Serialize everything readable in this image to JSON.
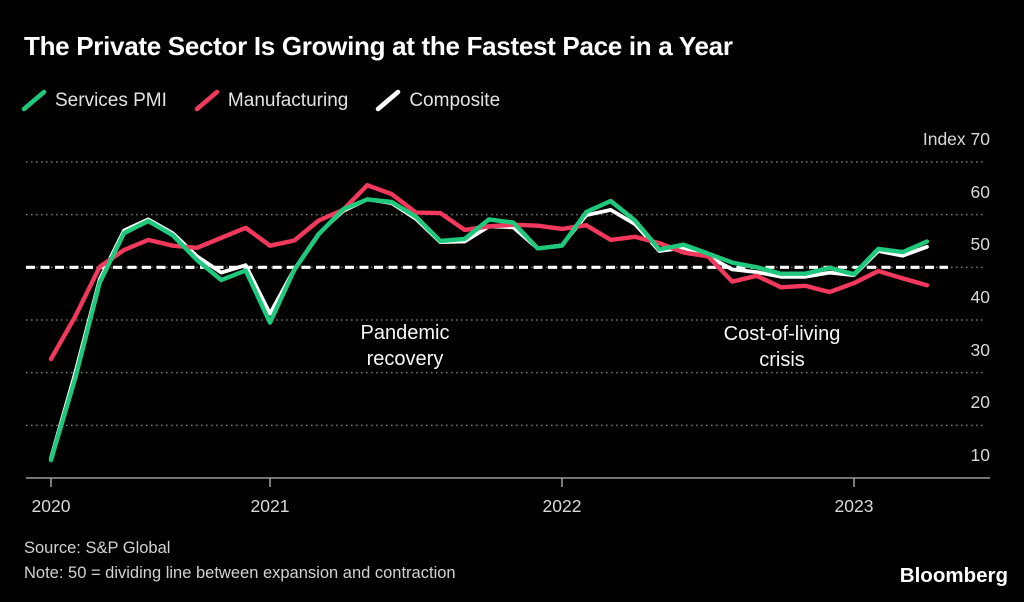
{
  "title": "The Private Sector Is Growing at the Fastest Pace in a Year",
  "legend": {
    "items": [
      {
        "label": "Services PMI"
      },
      {
        "label": "Manufacturing"
      },
      {
        "label": "Composite"
      }
    ]
  },
  "chart_data": {
    "type": "line",
    "title": "The Private Sector Is Growing at the Fastest Pace in a Year",
    "frequency": "monthly",
    "x_start": "2020-04",
    "x_end": "2023-04",
    "ylim": [
      10,
      70
    ],
    "grid": "dotted-horizontal",
    "legend_position": "top-left",
    "dividing_line": 50,
    "y_ticks": [
      {
        "label": "Index 70",
        "value": 70
      },
      {
        "label": "60",
        "value": 60
      },
      {
        "label": "50",
        "value": 50
      },
      {
        "label": "40",
        "value": 40
      },
      {
        "label": "30",
        "value": 30
      },
      {
        "label": "20",
        "value": 20
      },
      {
        "label": "10",
        "value": 10
      }
    ],
    "x_ticks": [
      {
        "label": "2020",
        "month_index": 0
      },
      {
        "label": "2021",
        "month_index": 9
      },
      {
        "label": "2022",
        "month_index": 21
      },
      {
        "label": "2023",
        "month_index": 33
      }
    ],
    "series": [
      {
        "name": "Services PMI",
        "color": "#1ec87d",
        "values": [
          13.4,
          29.0,
          47.1,
          56.5,
          58.8,
          56.1,
          51.4,
          47.6,
          49.4,
          39.5,
          49.5,
          56.3,
          61.0,
          62.9,
          62.4,
          59.6,
          55.0,
          55.4,
          59.1,
          58.5,
          53.6,
          54.1,
          60.5,
          62.6,
          58.9,
          53.4,
          54.3,
          52.6,
          50.9,
          50.0,
          48.8,
          48.8,
          49.9,
          48.7,
          53.5,
          52.9,
          54.9
        ]
      },
      {
        "name": "Manufacturing",
        "color": "#f2395d",
        "values": [
          32.6,
          40.7,
          50.1,
          53.3,
          55.2,
          54.1,
          53.7,
          55.6,
          57.5,
          54.1,
          55.1,
          58.9,
          60.9,
          65.6,
          63.9,
          60.4,
          60.3,
          57.1,
          57.8,
          58.1,
          57.9,
          57.3,
          58.0,
          55.2,
          55.8,
          54.6,
          52.8,
          52.1,
          47.3,
          48.4,
          46.2,
          46.5,
          45.3,
          47.0,
          49.3,
          47.9,
          46.6
        ]
      },
      {
        "name": "Composite",
        "color": "#ffffff",
        "values": [
          13.8,
          30.0,
          47.7,
          57.0,
          59.1,
          56.5,
          52.1,
          49.0,
          50.4,
          41.2,
          49.6,
          56.4,
          60.7,
          62.9,
          62.2,
          59.2,
          54.8,
          54.9,
          57.8,
          57.6,
          53.6,
          54.2,
          59.9,
          60.9,
          58.2,
          53.1,
          53.7,
          52.1,
          49.6,
          49.1,
          48.2,
          48.2,
          49.0,
          48.5,
          53.1,
          52.2,
          53.9
        ]
      }
    ],
    "annotations": [
      {
        "text": "Pandemic recovery"
      },
      {
        "text": "Cost-of-living crisis"
      }
    ]
  },
  "footer": {
    "source": "Source: S&P Global",
    "note": "Note: 50 = dividing line between expansion and contraction",
    "brand": "Bloomberg"
  },
  "colors": {
    "background": "#000000",
    "grid": "#757575",
    "axis": "#9a9a9a",
    "dividing_line": "#ffffff",
    "text_primary": "#ffffff",
    "text_secondary": "#d9d9d9"
  }
}
